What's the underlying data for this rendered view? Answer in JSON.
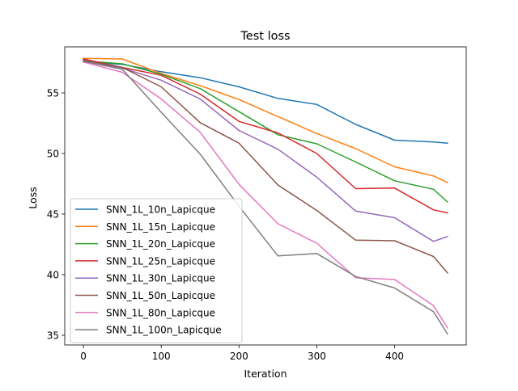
{
  "chart_data": {
    "type": "line",
    "title": "Test loss",
    "xlabel": "Iteration",
    "ylabel": "Loss",
    "xlim": [
      -24,
      492
    ],
    "ylim": [
      34.2,
      58.8
    ],
    "xticks": [
      0,
      100,
      200,
      300,
      400
    ],
    "yticks": [
      35,
      40,
      45,
      50,
      55
    ],
    "grid": false,
    "legend_position": "lower left",
    "x": [
      0,
      50,
      100,
      150,
      200,
      250,
      300,
      350,
      400,
      450,
      468
    ],
    "series": [
      {
        "name": "SNN_1L_10n_Lapicque",
        "color": "#1f77b4",
        "values": [
          57.6,
          57.35,
          56.75,
          56.25,
          55.5,
          54.55,
          54.05,
          52.4,
          51.1,
          50.95,
          50.85
        ]
      },
      {
        "name": "SNN_1L_15n_Lapicque",
        "color": "#ff7f0e",
        "values": [
          57.85,
          57.8,
          56.6,
          55.6,
          54.45,
          53.05,
          51.65,
          50.4,
          48.9,
          48.15,
          47.6
        ]
      },
      {
        "name": "SNN_1L_20n_Lapicque",
        "color": "#2ca02c",
        "values": [
          57.65,
          57.4,
          56.55,
          55.35,
          53.45,
          51.55,
          50.8,
          49.3,
          47.75,
          47.05,
          46.0
        ]
      },
      {
        "name": "SNN_1L_25n_Lapicque",
        "color": "#d62728",
        "values": [
          57.8,
          57.1,
          56.45,
          54.9,
          52.65,
          51.7,
          50.0,
          47.1,
          47.15,
          45.35,
          45.1
        ]
      },
      {
        "name": "SNN_1L_30n_Lapicque",
        "color": "#9467bd",
        "values": [
          57.6,
          57.05,
          56.05,
          54.5,
          51.9,
          50.35,
          48.05,
          45.25,
          44.7,
          42.75,
          43.15
        ]
      },
      {
        "name": "SNN_1L_50n_Lapicque",
        "color": "#8c564b",
        "values": [
          57.7,
          57.1,
          55.5,
          52.55,
          50.85,
          47.4,
          45.3,
          42.85,
          42.8,
          41.5,
          40.15
        ]
      },
      {
        "name": "SNN_1L_80n_Lapicque",
        "color": "#e377c2",
        "values": [
          57.55,
          56.7,
          54.5,
          51.75,
          47.45,
          44.2,
          42.6,
          39.75,
          39.6,
          37.45,
          35.6
        ]
      },
      {
        "name": "SNN_1L_100n_Lapicque",
        "color": "#7f7f7f",
        "values": [
          57.6,
          56.95,
          53.4,
          49.95,
          45.65,
          41.55,
          41.75,
          39.85,
          38.9,
          36.95,
          35.1
        ]
      }
    ]
  }
}
